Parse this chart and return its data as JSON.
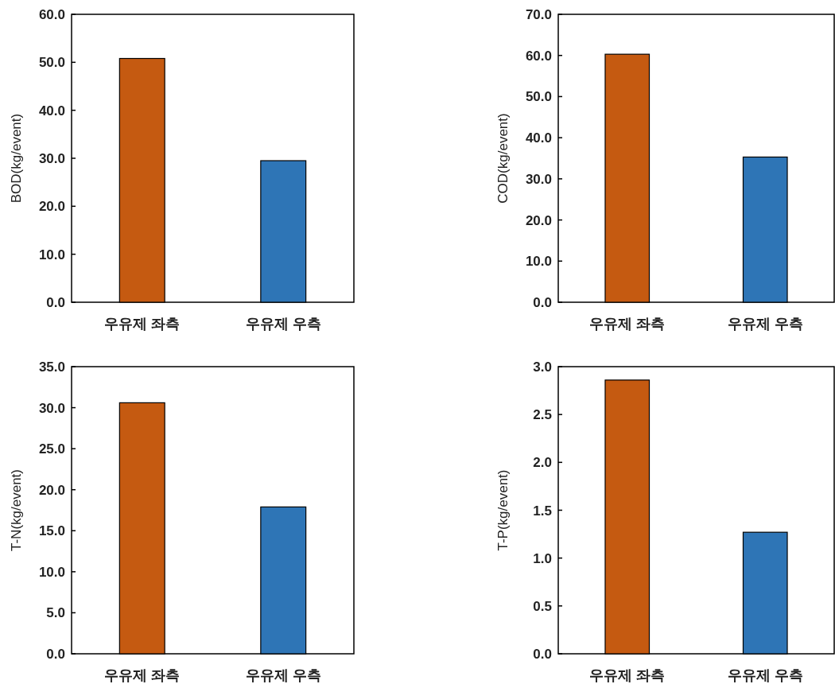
{
  "chart_data": [
    {
      "type": "bar",
      "ylabel": "BOD(kg/event)",
      "categories": [
        "우유제 좌측",
        "우유제 우측"
      ],
      "values": [
        50.8,
        29.5
      ],
      "colors": [
        "#c55a11",
        "#2e75b6"
      ],
      "ylim": [
        0,
        60
      ],
      "yticks": [
        {
          "value": 0,
          "label": "0.0"
        },
        {
          "value": 10,
          "label": "10.0"
        },
        {
          "value": 20,
          "label": "20.0"
        },
        {
          "value": 30,
          "label": "30.0"
        },
        {
          "value": 40,
          "label": "40.0"
        },
        {
          "value": 50,
          "label": "50.0"
        },
        {
          "value": 60,
          "label": "60.0"
        }
      ]
    },
    {
      "type": "bar",
      "ylabel": "COD(kg/event)",
      "categories": [
        "우유제 좌측",
        "우유제 우측"
      ],
      "values": [
        60.3,
        35.3
      ],
      "colors": [
        "#c55a11",
        "#2e75b6"
      ],
      "ylim": [
        0,
        70
      ],
      "yticks": [
        {
          "value": 0,
          "label": "0.0"
        },
        {
          "value": 10,
          "label": "10.0"
        },
        {
          "value": 20,
          "label": "20.0"
        },
        {
          "value": 30,
          "label": "30.0"
        },
        {
          "value": 40,
          "label": "40.0"
        },
        {
          "value": 50,
          "label": "50.0"
        },
        {
          "value": 60,
          "label": "60.0"
        },
        {
          "value": 70,
          "label": "70.0"
        }
      ]
    },
    {
      "type": "bar",
      "ylabel": "T-N(kg/event)",
      "categories": [
        "우유제 좌측",
        "우유제 우측"
      ],
      "values": [
        30.6,
        17.9
      ],
      "colors": [
        "#c55a11",
        "#2e75b6"
      ],
      "ylim": [
        0,
        35
      ],
      "yticks": [
        {
          "value": 0,
          "label": "0.0"
        },
        {
          "value": 5,
          "label": "5.0"
        },
        {
          "value": 10,
          "label": "10.0"
        },
        {
          "value": 15,
          "label": "15.0"
        },
        {
          "value": 20,
          "label": "20.0"
        },
        {
          "value": 25,
          "label": "25.0"
        },
        {
          "value": 30,
          "label": "30.0"
        },
        {
          "value": 35,
          "label": "35.0"
        }
      ]
    },
    {
      "type": "bar",
      "ylabel": "T-P(kg/event)",
      "categories": [
        "우유제 좌측",
        "우유제 우측"
      ],
      "values": [
        2.86,
        1.27
      ],
      "colors": [
        "#c55a11",
        "#2e75b6"
      ],
      "ylim": [
        0,
        3
      ],
      "yticks": [
        {
          "value": 0,
          "label": "0.0"
        },
        {
          "value": 0.5,
          "label": "0.5"
        },
        {
          "value": 1,
          "label": "1.0"
        },
        {
          "value": 1.5,
          "label": "1.5"
        },
        {
          "value": 2,
          "label": "2.0"
        },
        {
          "value": 2.5,
          "label": "2.5"
        },
        {
          "value": 3,
          "label": "3.0"
        }
      ]
    }
  ]
}
